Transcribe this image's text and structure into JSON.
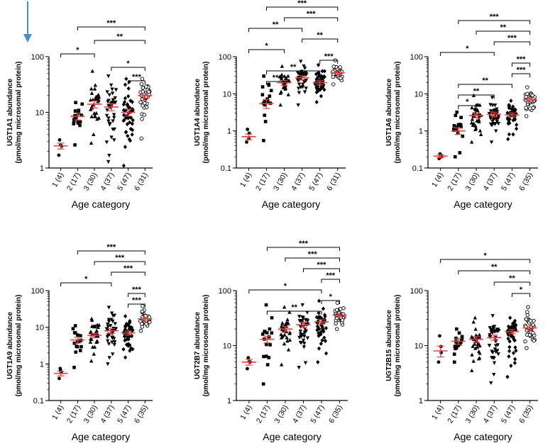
{
  "figure": {
    "annotation": "blue-arrow"
  },
  "colors": {
    "mean_bar": "#e8403a",
    "axis": "#000000",
    "arrow": "#4a90c8",
    "points": "#000000"
  },
  "chart_data": [
    {
      "type": "scatter",
      "panel": "UGT1A1",
      "ylabel": "UGT1A1 abundance",
      "ylabel_sub": "(pmol/mg microsomal protein)",
      "xlabel": "Age category",
      "ylim": [
        1,
        100
      ],
      "yticks": [
        {
          "v": 1,
          "label": "1"
        },
        {
          "v": 10,
          "label": "10"
        },
        {
          "v": 100,
          "label": "100"
        }
      ],
      "categories": [
        "1 (4)",
        "2 (17)",
        "3 (30)",
        "4 (37)",
        "5 (47)",
        "6 (31)"
      ],
      "means": [
        2.5,
        8.5,
        14,
        12.5,
        10,
        20
      ],
      "sems": [
        0.3,
        1.2,
        2,
        1.8,
        1.4,
        2
      ],
      "ranges": [
        [
          1.7,
          3.2
        ],
        [
          2.6,
          15
        ],
        [
          2.8,
          55
        ],
        [
          1.3,
          45
        ],
        [
          1.1,
          40
        ],
        [
          3.4,
          40
        ]
      ],
      "brackets": [
        {
          "from": 2,
          "to": 6,
          "label": "***"
        },
        {
          "from": 3,
          "to": 6,
          "label": "**"
        },
        {
          "from": 1,
          "to": 3,
          "label": "*"
        },
        {
          "from": 4,
          "to": 6,
          "label": "*"
        },
        {
          "from": 5,
          "to": 6,
          "label": "***"
        }
      ]
    },
    {
      "type": "scatter",
      "panel": "UGT1A4",
      "ylabel": "UGT1A4 abundance",
      "ylabel_sub": "(pmol/mg microsomal protein)",
      "xlabel": "Age category",
      "ylim": [
        0.1,
        100
      ],
      "yticks": [
        {
          "v": 0.1,
          "label": "0.1"
        },
        {
          "v": 1,
          "label": "1"
        },
        {
          "v": 10,
          "label": "10"
        },
        {
          "v": 100,
          "label": "100"
        }
      ],
      "categories": [
        "1 (4)",
        "2 (17)",
        "3 (30)",
        "4 (37)",
        "5 (47)",
        "6 (31)"
      ],
      "means": [
        0.7,
        5.5,
        20,
        27,
        20,
        37
      ],
      "sems": [
        0.12,
        1.5,
        3,
        3.5,
        2.5,
        4
      ],
      "ranges": [
        [
          0.5,
          1.1
        ],
        [
          0.55,
          30
        ],
        [
          5,
          55
        ],
        [
          5,
          75
        ],
        [
          6,
          60
        ],
        [
          18,
          80
        ]
      ],
      "brackets": [
        {
          "from": 2,
          "to": 6,
          "label": "***"
        },
        {
          "from": 3,
          "to": 6,
          "label": "***"
        },
        {
          "from": 1,
          "to": 4,
          "label": "**"
        },
        {
          "from": 4,
          "to": 6,
          "label": "**"
        },
        {
          "from": 1,
          "to": 3,
          "label": "*"
        },
        {
          "from": 5,
          "to": 6,
          "label": "***"
        },
        {
          "from": 2,
          "to": 5,
          "label": "**"
        },
        {
          "from": 2,
          "to": 3,
          "label": "**"
        }
      ]
    },
    {
      "type": "scatter",
      "panel": "UGT1A6",
      "ylabel": "UGT1A6 abundance",
      "ylabel_sub": "(pmol/mg microsomal protein)",
      "xlabel": "Age category",
      "ylim": [
        0.1,
        100
      ],
      "yticks": [
        {
          "v": 0.1,
          "label": "0.1"
        },
        {
          "v": 1,
          "label": "1"
        },
        {
          "v": 10,
          "label": "10"
        },
        {
          "v": 100,
          "label": "100"
        }
      ],
      "categories": [
        "1 (4)",
        "2 (17)",
        "3 (30)",
        "4 (37)",
        "5 (47)",
        "6 (35)"
      ],
      "means": [
        0.21,
        1.0,
        2.6,
        2.8,
        2.7,
        7
      ],
      "sems": [
        0.02,
        0.2,
        0.35,
        0.4,
        0.35,
        0.8
      ],
      "ranges": [
        [
          0.18,
          0.24
        ],
        [
          0.2,
          3.2
        ],
        [
          0.5,
          9
        ],
        [
          0.5,
          8
        ],
        [
          0.6,
          6.5
        ],
        [
          2.5,
          15
        ]
      ],
      "brackets": [
        {
          "from": 2,
          "to": 6,
          "label": "***"
        },
        {
          "from": 3,
          "to": 6,
          "label": "**"
        },
        {
          "from": 4,
          "to": 6,
          "label": "***"
        },
        {
          "from": 1,
          "to": 4,
          "label": "*"
        },
        {
          "from": 5,
          "to": 6,
          "label": "***"
        },
        {
          "from": 5,
          "to": 6,
          "label": "***"
        },
        {
          "from": 2,
          "to": 5,
          "label": "**"
        },
        {
          "from": 2,
          "to": 4,
          "label": "**"
        },
        {
          "from": 2,
          "to": 3,
          "label": "*"
        }
      ]
    },
    {
      "type": "scatter",
      "panel": "UGT1A9",
      "ylabel": "UGT1A9 abundance",
      "ylabel_sub": "(pmol/mg microsomal protein)",
      "xlabel": "Age category",
      "ylim": [
        0.1,
        100
      ],
      "yticks": [
        {
          "v": 0.1,
          "label": "0.1"
        },
        {
          "v": 1,
          "label": "1"
        },
        {
          "v": 10,
          "label": "10"
        },
        {
          "v": 100,
          "label": "100"
        }
      ],
      "categories": [
        "1 (4)",
        "2 (17)",
        "3 (30)",
        "4 (37)",
        "5 (47)",
        "6 (35)"
      ],
      "means": [
        0.55,
        4.5,
        6,
        8,
        7,
        17
      ],
      "sems": [
        0.08,
        0.8,
        0.8,
        1.2,
        0.9,
        1.5
      ],
      "ranges": [
        [
          0.4,
          0.75
        ],
        [
          0.8,
          11
        ],
        [
          1.2,
          17
        ],
        [
          1.0,
          35
        ],
        [
          1.5,
          20
        ],
        [
          8,
          38
        ]
      ],
      "brackets": [
        {
          "from": 2,
          "to": 6,
          "label": "***"
        },
        {
          "from": 3,
          "to": 6,
          "label": "***"
        },
        {
          "from": 4,
          "to": 6,
          "label": "***"
        },
        {
          "from": 1,
          "to": 4,
          "label": "*"
        },
        {
          "from": 5,
          "to": 6,
          "label": "***"
        },
        {
          "from": 5,
          "to": 6,
          "label": "***"
        }
      ]
    },
    {
      "type": "scatter",
      "panel": "UGT2B7",
      "ylabel": "UGT2B7 abundance",
      "ylabel_sub": "(pmol/mg microsomal protein)",
      "xlabel": "Age category",
      "ylim": [
        1,
        100
      ],
      "yticks": [
        {
          "v": 1,
          "label": "1"
        },
        {
          "v": 10,
          "label": "10"
        },
        {
          "v": 100,
          "label": "100"
        }
      ],
      "categories": [
        "1 (4)",
        "2 (17)",
        "3 (30)",
        "4 (37)",
        "5 (47)",
        "6 (35)"
      ],
      "means": [
        5,
        13,
        20,
        24,
        27,
        36
      ],
      "sems": [
        0.6,
        1.8,
        2.2,
        2.8,
        2.5,
        3
      ],
      "ranges": [
        [
          3.8,
          6
        ],
        [
          2,
          55
        ],
        [
          4.5,
          50
        ],
        [
          4,
          55
        ],
        [
          5,
          65
        ],
        [
          20,
          60
        ]
      ],
      "brackets": [
        {
          "from": 2,
          "to": 6,
          "label": "***"
        },
        {
          "from": 3,
          "to": 6,
          "label": "***"
        },
        {
          "from": 4,
          "to": 6,
          "label": "***"
        },
        {
          "from": 5,
          "to": 6,
          "label": "***"
        },
        {
          "from": 1,
          "to": 5,
          "label": "*"
        },
        {
          "from": 5,
          "to": 6,
          "label": "*"
        },
        {
          "from": 2,
          "to": 5,
          "label": "**"
        }
      ]
    },
    {
      "type": "scatter",
      "panel": "UGT2B15",
      "ylabel": "UGT2B15 abundance",
      "ylabel_sub": "(pmol/mg microsomal protein)",
      "xlabel": "Age category",
      "ylim": [
        1,
        100
      ],
      "yticks": [
        {
          "v": 1,
          "label": "1"
        },
        {
          "v": 10,
          "label": "10"
        },
        {
          "v": 100,
          "label": "100"
        }
      ],
      "categories": [
        "1 (4)",
        "2 (17)",
        "3 (30)",
        "4 (37)",
        "5 (47)",
        "6 (35)"
      ],
      "means": [
        8,
        12,
        13,
        14,
        18,
        21
      ],
      "sems": [
        1.8,
        1.5,
        1.5,
        1.5,
        1.6,
        1.8
      ],
      "ranges": [
        [
          5,
          15
        ],
        [
          5,
          20
        ],
        [
          3.5,
          32
        ],
        [
          2.1,
          35
        ],
        [
          2.7,
          32
        ],
        [
          9,
          50
        ]
      ],
      "brackets": [
        {
          "from": 1,
          "to": 6,
          "label": "*"
        },
        {
          "from": 2,
          "to": 6,
          "label": "**"
        },
        {
          "from": 4,
          "to": 6,
          "label": "**"
        },
        {
          "from": 5,
          "to": 6,
          "label": "*"
        }
      ]
    }
  ]
}
